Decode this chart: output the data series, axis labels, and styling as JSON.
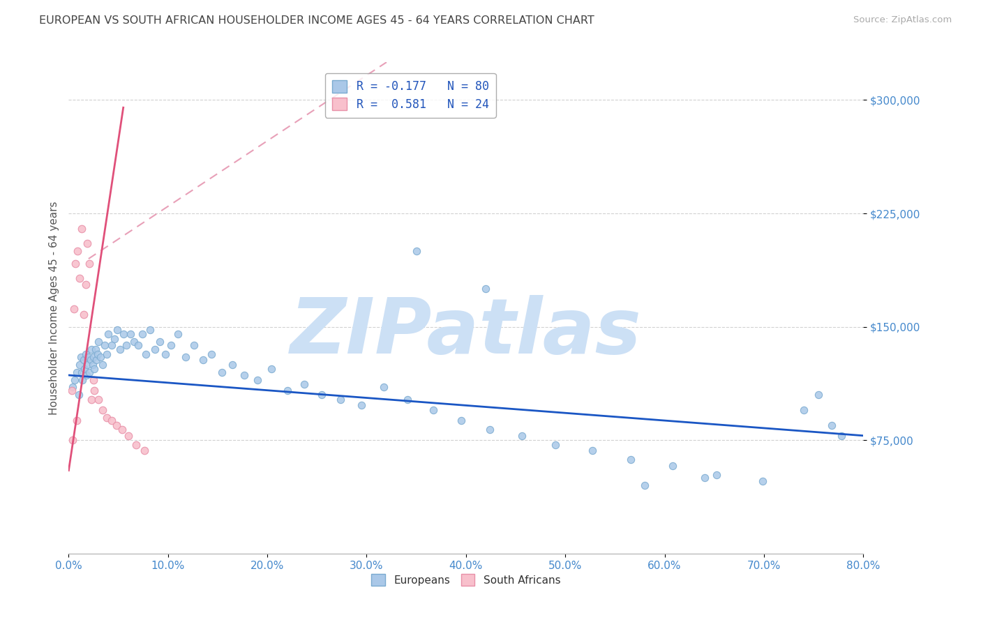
{
  "title": "EUROPEAN VS SOUTH AFRICAN HOUSEHOLDER INCOME AGES 45 - 64 YEARS CORRELATION CHART",
  "source": "Source: ZipAtlas.com",
  "ylabel": "Householder Income Ages 45 - 64 years",
  "xlim": [
    0.0,
    0.8
  ],
  "ylim": [
    0,
    325000
  ],
  "yticks": [
    75000,
    150000,
    225000,
    300000
  ],
  "ytick_labels": [
    "$75,000",
    "$150,000",
    "$225,000",
    "$300,000"
  ],
  "xtick_vals": [
    0.0,
    0.1,
    0.2,
    0.3,
    0.4,
    0.5,
    0.6,
    0.7,
    0.8
  ],
  "xtick_labels": [
    "0.0%",
    "10.0%",
    "20.0%",
    "30.0%",
    "40.0%",
    "50.0%",
    "60.0%",
    "70.0%",
    "80.0%"
  ],
  "europeans_color": "#aac8e8",
  "europeans_edge": "#7aaad0",
  "south_africans_color": "#f8c0cc",
  "south_africans_edge": "#e890a8",
  "trend_europe_color": "#1a56c4",
  "trend_sa_color": "#e0507a",
  "trend_sa_dash_color": "#e8a0b8",
  "legend_line1": "R = -0.177   N = 80",
  "legend_line2": "R =  0.581   N = 24",
  "eu_label": "Europeans",
  "sa_label": "South Africans",
  "watermark": "ZIPatlas",
  "watermark_color": "#cce0f5",
  "title_color": "#444444",
  "ylabel_color": "#555555",
  "tick_label_color": "#4488cc",
  "grid_color": "#cccccc",
  "background_color": "#ffffff",
  "eu_x": [
    0.004,
    0.006,
    0.008,
    0.01,
    0.011,
    0.012,
    0.013,
    0.014,
    0.015,
    0.016,
    0.017,
    0.018,
    0.019,
    0.02,
    0.021,
    0.022,
    0.023,
    0.024,
    0.025,
    0.026,
    0.027,
    0.028,
    0.029,
    0.03,
    0.032,
    0.034,
    0.036,
    0.038,
    0.04,
    0.043,
    0.046,
    0.049,
    0.052,
    0.055,
    0.058,
    0.062,
    0.066,
    0.07,
    0.074,
    0.078,
    0.082,
    0.087,
    0.092,
    0.097,
    0.103,
    0.11,
    0.118,
    0.126,
    0.135,
    0.144,
    0.154,
    0.165,
    0.177,
    0.19,
    0.204,
    0.22,
    0.237,
    0.255,
    0.274,
    0.295,
    0.317,
    0.341,
    0.367,
    0.395,
    0.424,
    0.456,
    0.49,
    0.527,
    0.566,
    0.608,
    0.652,
    0.699,
    0.74,
    0.755,
    0.768,
    0.778,
    0.35,
    0.42,
    0.58,
    0.64
  ],
  "eu_y": [
    110000,
    115000,
    120000,
    105000,
    125000,
    130000,
    120000,
    115000,
    128000,
    122000,
    132000,
    118000,
    125000,
    130000,
    120000,
    128000,
    135000,
    125000,
    130000,
    122000,
    135000,
    128000,
    132000,
    140000,
    130000,
    125000,
    138000,
    132000,
    145000,
    138000,
    142000,
    148000,
    135000,
    145000,
    138000,
    145000,
    140000,
    138000,
    145000,
    132000,
    148000,
    135000,
    140000,
    132000,
    138000,
    145000,
    130000,
    138000,
    128000,
    132000,
    120000,
    125000,
    118000,
    115000,
    122000,
    108000,
    112000,
    105000,
    102000,
    98000,
    110000,
    102000,
    95000,
    88000,
    82000,
    78000,
    72000,
    68000,
    62000,
    58000,
    52000,
    48000,
    95000,
    105000,
    85000,
    78000,
    200000,
    175000,
    45000,
    50000
  ],
  "sa_x": [
    0.003,
    0.005,
    0.007,
    0.009,
    0.011,
    0.013,
    0.015,
    0.017,
    0.019,
    0.021,
    0.023,
    0.026,
    0.03,
    0.034,
    0.038,
    0.043,
    0.048,
    0.054,
    0.06,
    0.068,
    0.076,
    0.004,
    0.008,
    0.025
  ],
  "sa_y": [
    108000,
    162000,
    192000,
    200000,
    182000,
    215000,
    158000,
    178000,
    205000,
    192000,
    102000,
    108000,
    102000,
    95000,
    90000,
    88000,
    85000,
    82000,
    78000,
    72000,
    68000,
    75000,
    88000,
    115000
  ],
  "eu_trend_x0": 0.0,
  "eu_trend_x1": 0.8,
  "eu_trend_y0": 118000,
  "eu_trend_y1": 78000,
  "sa_trend_x0": 0.0,
  "sa_trend_x1": 0.055,
  "sa_trend_y0": 55000,
  "sa_trend_y1": 295000,
  "sa_trend_dash_x0": 0.02,
  "sa_trend_dash_x1": 0.32,
  "sa_trend_dash_y0": 195000,
  "sa_trend_dash_y1": 325000
}
